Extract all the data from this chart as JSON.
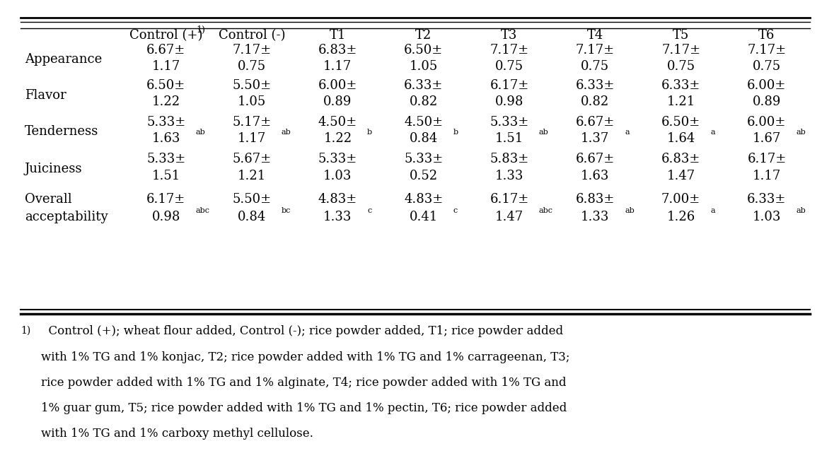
{
  "col_headers": [
    "Control (+)",
    "Control (-)",
    "T1",
    "T2",
    "T3",
    "T4",
    "T5",
    "T6"
  ],
  "row_groups": [
    {
      "label": "Appearance",
      "row1": [
        "6.67±",
        "7.17±",
        "6.83±",
        "6.50±",
        "7.17±",
        "7.17±",
        "7.17±",
        "7.17±"
      ],
      "row2": [
        "1.17",
        "0.75",
        "1.17",
        "1.05",
        "0.75",
        "0.75",
        "0.75",
        "0.75"
      ],
      "row2_super": [
        "",
        "",
        "",
        "",
        "",
        "",
        "",
        ""
      ]
    },
    {
      "label": "Flavor",
      "row1": [
        "6.50±",
        "5.50±",
        "6.00±",
        "6.33±",
        "6.17±",
        "6.33±",
        "6.33±",
        "6.00±"
      ],
      "row2": [
        "1.22",
        "1.05",
        "0.89",
        "0.82",
        "0.98",
        "0.82",
        "1.21",
        "0.89"
      ],
      "row2_super": [
        "",
        "",
        "",
        "",
        "",
        "",
        "",
        ""
      ]
    },
    {
      "label": "Tenderness",
      "row1": [
        "5.33±",
        "5.17±",
        "4.50±",
        "4.50±",
        "5.33±",
        "6.67±",
        "6.50±",
        "6.00±"
      ],
      "row2": [
        "1.63",
        "1.17",
        "1.22",
        "0.84",
        "1.51",
        "1.37",
        "1.64",
        "1.67"
      ],
      "row2_super": [
        "ab",
        "ab",
        "b",
        "b",
        "ab",
        "a",
        "a",
        "ab"
      ]
    },
    {
      "label": "Juiciness",
      "row1": [
        "5.33±",
        "5.67±",
        "5.33±",
        "5.33±",
        "5.83±",
        "6.67±",
        "6.83±",
        "6.17±"
      ],
      "row2": [
        "1.51",
        "1.21",
        "1.03",
        "0.52",
        "1.33",
        "1.63",
        "1.47",
        "1.17"
      ],
      "row2_super": [
        "",
        "",
        "",
        "",
        "",
        "",
        "",
        ""
      ]
    },
    {
      "label": "Overall",
      "label2": "acceptability",
      "row1": [
        "6.17±",
        "5.50±",
        "4.83±",
        "4.83±",
        "6.17±",
        "6.83±",
        "7.00±",
        "6.33±"
      ],
      "row2": [
        "0.98",
        "0.84",
        "1.33",
        "0.41",
        "1.47",
        "1.33",
        "1.26",
        "1.03"
      ],
      "row2_super": [
        "abc",
        "bc",
        "c",
        "c",
        "abc",
        "ab",
        "a",
        "ab"
      ]
    }
  ],
  "footnote_lines": [
    "  Control (+); wheat flour added, Control (-); rice powder added, T1; rice powder added",
    "with 1% TG and 1% konjac, T2; rice powder added with 1% TG and 1% carrageenan, T3;",
    "rice powder added with 1% TG and 1% alginate, T4; rice powder added with 1% TG and",
    "1% guar gum, T5; rice powder added with 1% TG and 1% pectin, T6; rice powder added",
    "with 1% TG and 1% carboxy methyl cellulose."
  ],
  "bg_color": "#ffffff",
  "text_color": "#000000",
  "fs": 13,
  "fs_super": 8,
  "fs_footnote": 12
}
